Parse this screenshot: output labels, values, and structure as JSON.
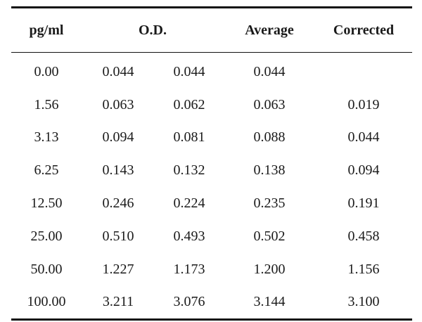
{
  "table": {
    "headers": {
      "concentration": "pg/ml",
      "od": "O.D.",
      "average": "Average",
      "corrected": "Corrected"
    },
    "rows": [
      {
        "pgml": "0.00",
        "od1": "0.044",
        "od2": "0.044",
        "average": "0.044",
        "corrected": ""
      },
      {
        "pgml": "1.56",
        "od1": "0.063",
        "od2": "0.062",
        "average": "0.063",
        "corrected": "0.019"
      },
      {
        "pgml": "3.13",
        "od1": "0.094",
        "od2": "0.081",
        "average": "0.088",
        "corrected": "0.044"
      },
      {
        "pgml": "6.25",
        "od1": "0.143",
        "od2": "0.132",
        "average": "0.138",
        "corrected": "0.094"
      },
      {
        "pgml": "12.50",
        "od1": "0.246",
        "od2": "0.224",
        "average": "0.235",
        "corrected": "0.191"
      },
      {
        "pgml": "25.00",
        "od1": "0.510",
        "od2": "0.493",
        "average": "0.502",
        "corrected": "0.458"
      },
      {
        "pgml": "50.00",
        "od1": "1.227",
        "od2": "1.173",
        "average": "1.200",
        "corrected": "1.156"
      },
      {
        "pgml": "100.00",
        "od1": "3.211",
        "od2": "3.076",
        "average": "3.144",
        "corrected": "3.100"
      }
    ]
  }
}
